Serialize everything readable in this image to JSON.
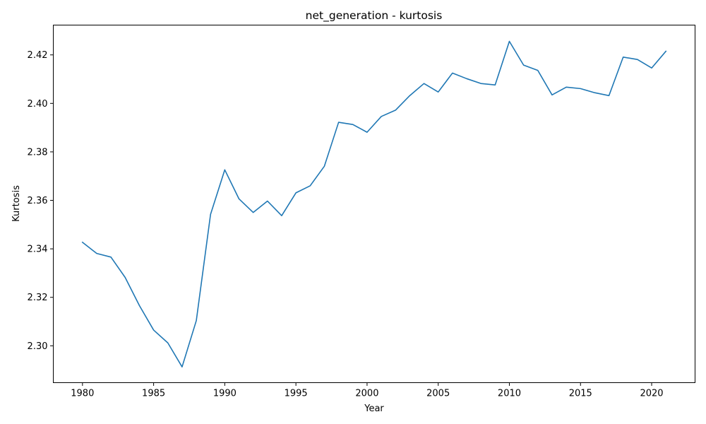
{
  "chart_data": {
    "type": "line",
    "title": "net_generation - kurtosis",
    "xlabel": "Year",
    "ylabel": "Kurtosis",
    "xlim": [
      1977.95,
      2023.05
    ],
    "ylim": [
      2.2848,
      2.4323
    ],
    "xticks": [
      1980,
      1985,
      1990,
      1995,
      2000,
      2005,
      2010,
      2015,
      2020
    ],
    "yticks": [
      2.3,
      2.32,
      2.34,
      2.36,
      2.38,
      2.4,
      2.42
    ],
    "ytick_labels": [
      "2.30",
      "2.32",
      "2.34",
      "2.36",
      "2.38",
      "2.40",
      "2.42"
    ],
    "grid": false,
    "legend": "none",
    "series": [
      {
        "color": "#1f77b4",
        "x": [
          1980,
          1981,
          1982,
          1983,
          1984,
          1985,
          1986,
          1987,
          1988,
          1989,
          1990,
          1991,
          1992,
          1993,
          1994,
          1995,
          1996,
          1997,
          1998,
          1999,
          2000,
          2001,
          2002,
          2003,
          2004,
          2005,
          2006,
          2007,
          2008,
          2009,
          2010,
          2011,
          2012,
          2013,
          2014,
          2015,
          2016,
          2017,
          2018,
          2019,
          2020,
          2021
        ],
        "y": [
          2.3427,
          2.3381,
          2.3366,
          2.3282,
          2.3166,
          2.3065,
          2.3012,
          2.2913,
          2.3104,
          2.3542,
          2.3726,
          2.3606,
          2.355,
          2.3597,
          2.3537,
          2.3631,
          2.366,
          2.3741,
          2.3922,
          2.3913,
          2.3881,
          2.3946,
          2.3972,
          2.4032,
          2.4082,
          2.4047,
          2.4125,
          2.4102,
          2.4082,
          2.4076,
          2.4256,
          2.4158,
          2.4136,
          2.4035,
          2.4067,
          2.4061,
          2.4044,
          2.4032,
          2.4191,
          2.4181,
          2.4146,
          2.4215
        ]
      }
    ]
  }
}
